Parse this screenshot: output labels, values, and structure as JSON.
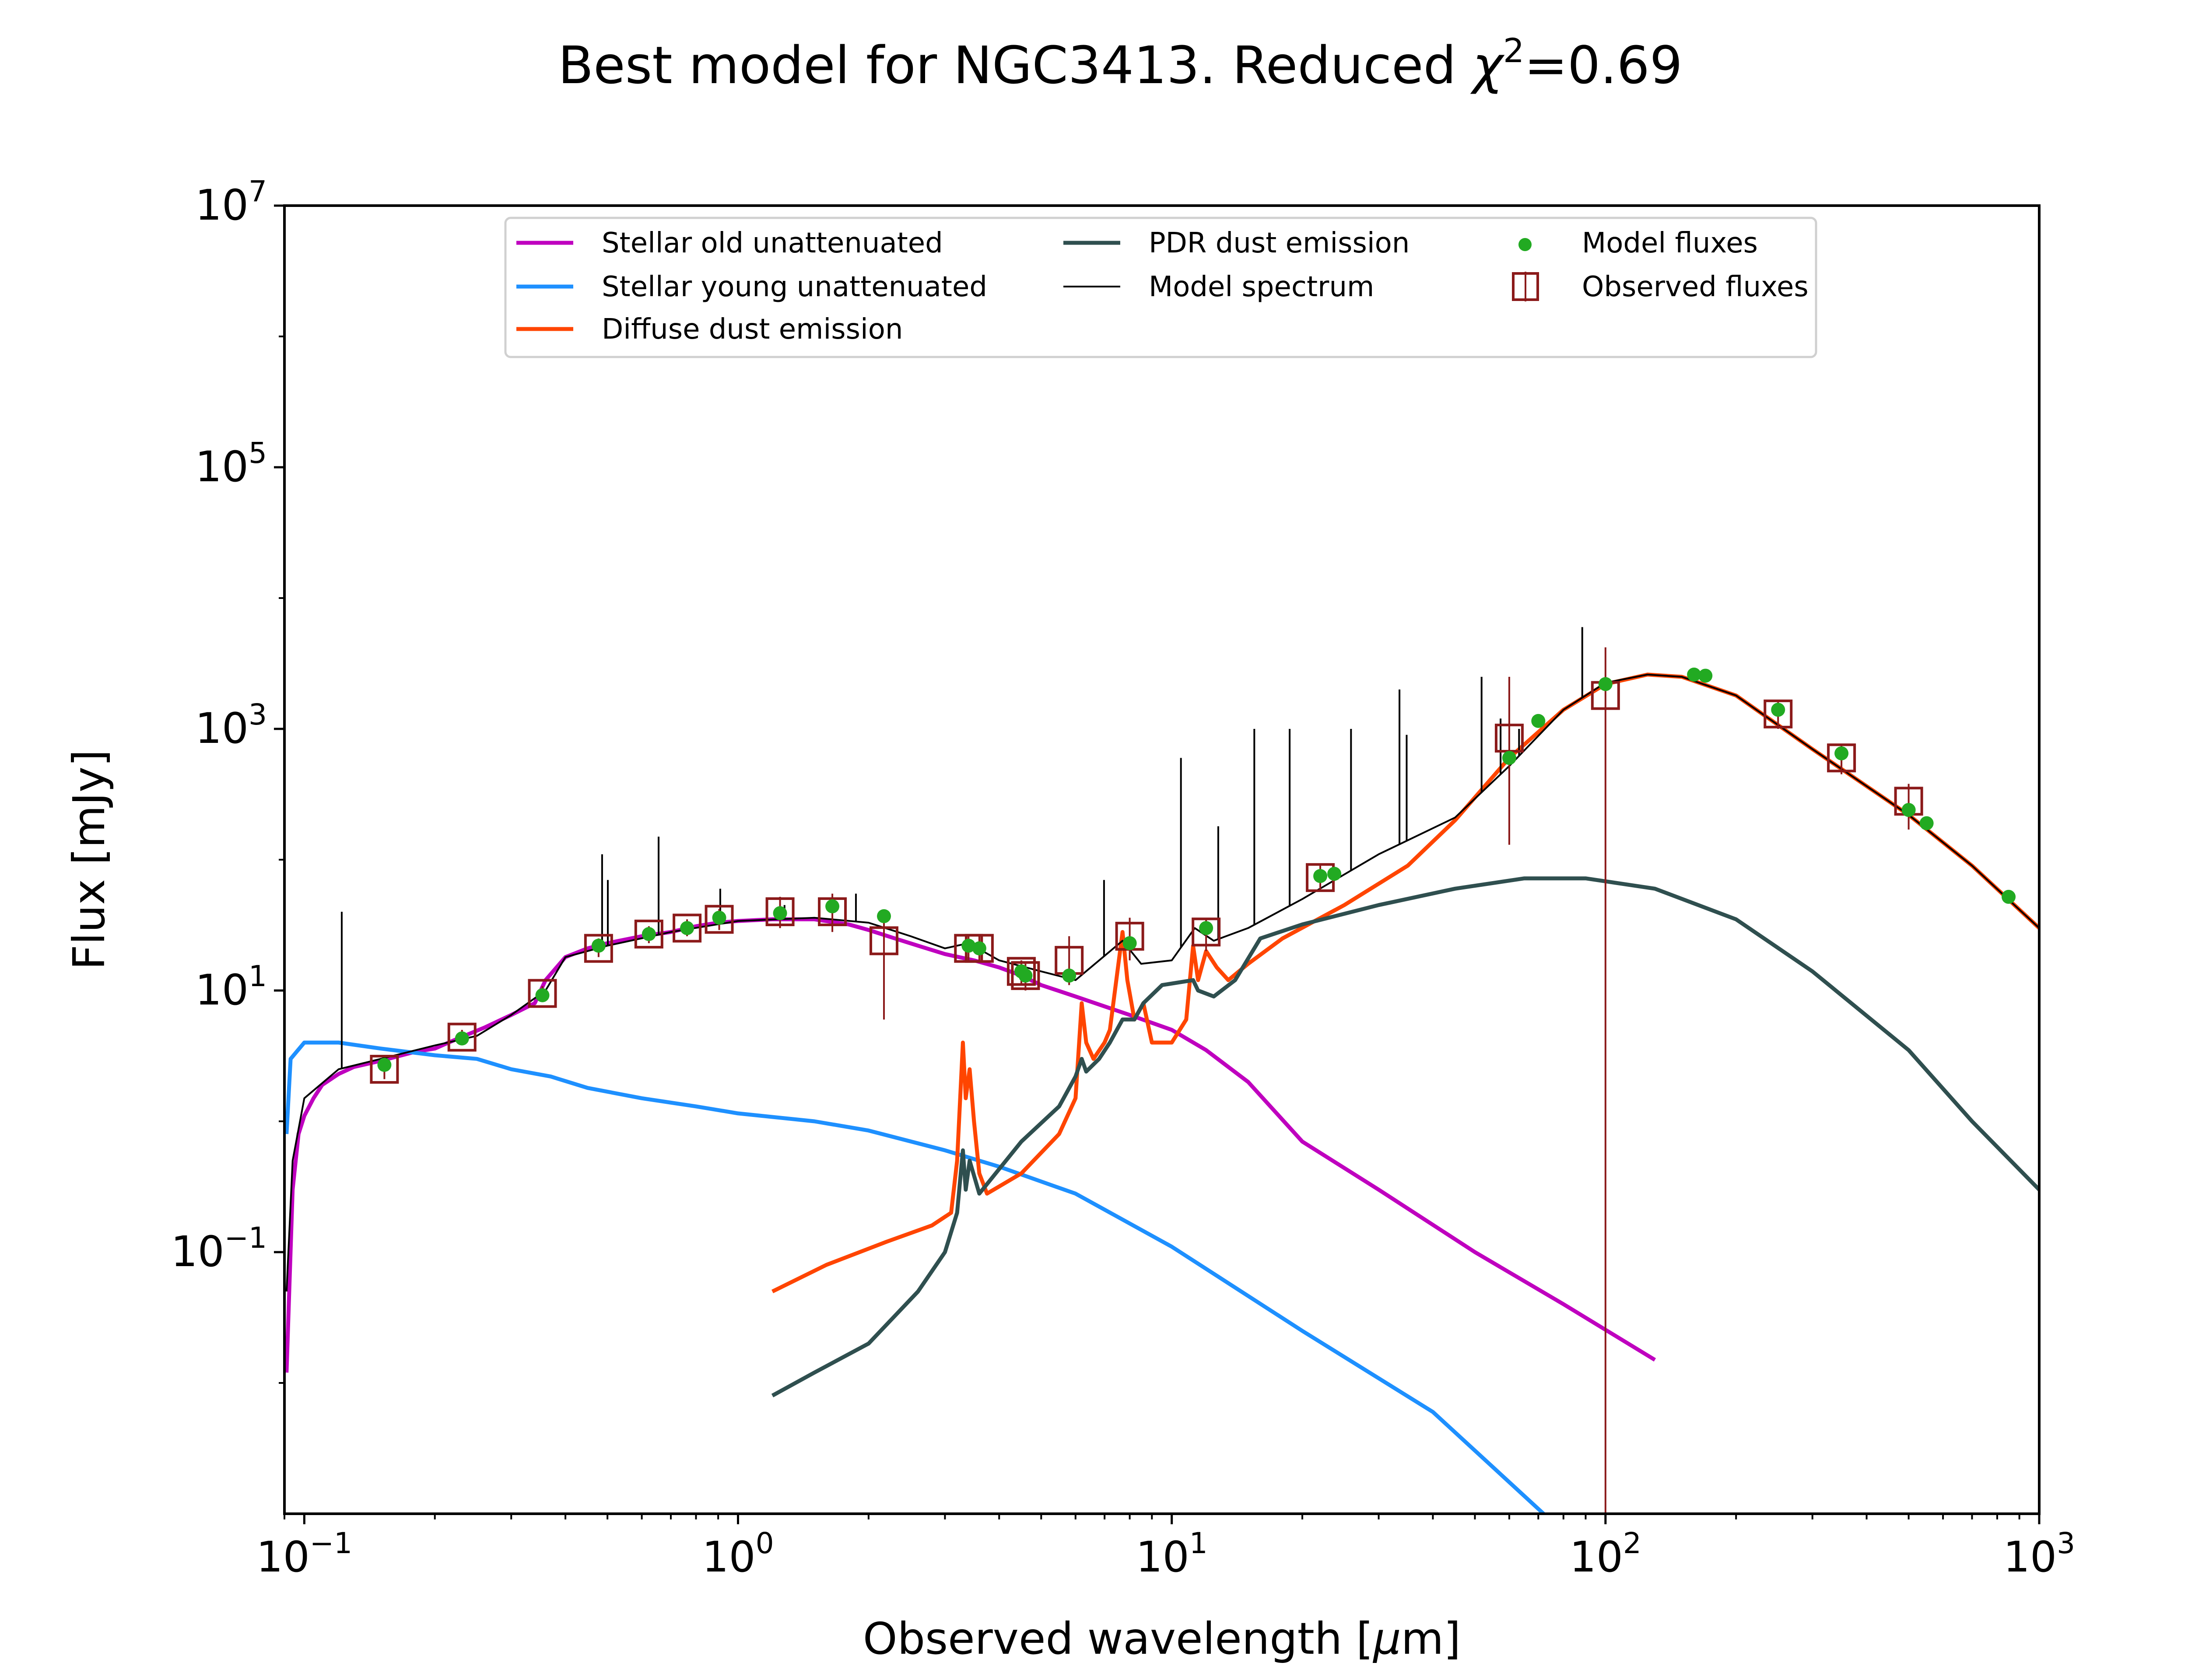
{
  "chart_data": {
    "type": "line",
    "title": {
      "prefix": "Best model for NGC3413. Reduced ",
      "chi_symbol": "χ",
      "chi_exponent": "2",
      "suffix": "=0.69"
    },
    "xlabel": {
      "prefix": "Observed wavelength [",
      "mu": "μ",
      "suffix": "m]"
    },
    "ylabel": "Flux [mJy]",
    "x_scale": "log",
    "y_scale": "log",
    "xlim": [
      0.09,
      1000
    ],
    "ylim": [
      0.001,
      10000000
    ],
    "x_ticks": [
      {
        "base": "10",
        "exp": "−1",
        "value": 0.1
      },
      {
        "base": "10",
        "exp": "0",
        "value": 1
      },
      {
        "base": "10",
        "exp": "1",
        "value": 10
      },
      {
        "base": "10",
        "exp": "2",
        "value": 100
      },
      {
        "base": "10",
        "exp": "3",
        "value": 1000
      }
    ],
    "y_ticks": [
      {
        "base": "10",
        "exp": "−1",
        "value": 0.1
      },
      {
        "base": "10",
        "exp": "1",
        "value": 10
      },
      {
        "base": "10",
        "exp": "3",
        "value": 1000
      },
      {
        "base": "10",
        "exp": "5",
        "value": 100000
      },
      {
        "base": "10",
        "exp": "7",
        "value": 10000000
      }
    ],
    "grid": false,
    "legend_position": "top-center",
    "series": [
      {
        "name": "Stellar old unattenuated",
        "color": "#bf00bf",
        "points": [
          [
            0.091,
            0.012
          ],
          [
            0.094,
            0.3
          ],
          [
            0.097,
            0.8
          ],
          [
            0.1,
            1.1
          ],
          [
            0.105,
            1.5
          ],
          [
            0.11,
            1.9
          ],
          [
            0.12,
            2.3
          ],
          [
            0.13,
            2.6
          ],
          [
            0.15,
            2.9
          ],
          [
            0.18,
            3.4
          ],
          [
            0.2,
            3.6
          ],
          [
            0.23,
            4.4
          ],
          [
            0.26,
            5.2
          ],
          [
            0.3,
            6.5
          ],
          [
            0.34,
            8
          ],
          [
            0.36,
            12
          ],
          [
            0.4,
            18
          ],
          [
            0.45,
            21
          ],
          [
            0.5,
            23
          ],
          [
            0.6,
            26
          ],
          [
            0.7,
            28
          ],
          [
            0.8,
            31
          ],
          [
            0.9,
            33
          ],
          [
            1.0,
            34
          ],
          [
            1.2,
            35
          ],
          [
            1.5,
            35
          ],
          [
            1.8,
            32
          ],
          [
            2.0,
            29
          ],
          [
            2.3,
            25
          ],
          [
            2.6,
            22
          ],
          [
            3.0,
            19
          ],
          [
            3.5,
            17
          ],
          [
            4.0,
            15
          ],
          [
            4.5,
            13
          ],
          [
            5.0,
            11
          ],
          [
            6.0,
            9
          ],
          [
            8.0,
            6.5
          ],
          [
            10.0,
            5
          ],
          [
            12.0,
            3.5
          ],
          [
            15.0,
            2
          ],
          [
            20.0,
            0.7
          ],
          [
            30.0,
            0.3
          ],
          [
            50.0,
            0.1
          ],
          [
            80.0,
            0.04
          ],
          [
            130.0,
            0.015
          ]
        ]
      },
      {
        "name": "Stellar young unattenuated",
        "color": "#1e90ff",
        "points": [
          [
            0.091,
            0.8
          ],
          [
            0.093,
            3.0
          ],
          [
            0.1,
            4.0
          ],
          [
            0.12,
            4.0
          ],
          [
            0.15,
            3.6
          ],
          [
            0.2,
            3.2
          ],
          [
            0.25,
            3.0
          ],
          [
            0.3,
            2.5
          ],
          [
            0.37,
            2.2
          ],
          [
            0.45,
            1.8
          ],
          [
            0.6,
            1.5
          ],
          [
            0.8,
            1.3
          ],
          [
            1.0,
            1.15
          ],
          [
            1.5,
            1.0
          ],
          [
            2.0,
            0.85
          ],
          [
            3.0,
            0.6
          ],
          [
            4.0,
            0.45
          ],
          [
            6.0,
            0.28
          ],
          [
            10.0,
            0.11
          ],
          [
            20.0,
            0.025
          ],
          [
            40.0,
            0.006
          ],
          [
            72.0,
            0.001
          ]
        ]
      },
      {
        "name": "Diffuse dust emission",
        "color": "#ff4500",
        "points": [
          [
            1.2,
            0.05
          ],
          [
            1.6,
            0.08
          ],
          [
            2.2,
            0.12
          ],
          [
            2.8,
            0.16
          ],
          [
            3.1,
            0.2
          ],
          [
            3.2,
            0.5
          ],
          [
            3.3,
            4
          ],
          [
            3.35,
            1.5
          ],
          [
            3.42,
            2.5
          ],
          [
            3.5,
            1
          ],
          [
            3.6,
            0.4
          ],
          [
            3.75,
            0.28
          ],
          [
            4.5,
            0.4
          ],
          [
            5.5,
            0.8
          ],
          [
            6.0,
            1.5
          ],
          [
            6.2,
            8
          ],
          [
            6.35,
            4
          ],
          [
            6.6,
            3
          ],
          [
            7.0,
            4
          ],
          [
            7.2,
            5
          ],
          [
            7.7,
            28
          ],
          [
            7.9,
            12
          ],
          [
            8.2,
            6
          ],
          [
            8.6,
            8
          ],
          [
            9.0,
            4
          ],
          [
            10.0,
            4
          ],
          [
            10.8,
            6
          ],
          [
            11.2,
            22
          ],
          [
            11.5,
            12
          ],
          [
            12.0,
            20
          ],
          [
            12.7,
            15
          ],
          [
            13.5,
            12
          ],
          [
            15.0,
            16
          ],
          [
            18.0,
            25
          ],
          [
            25.0,
            45
          ],
          [
            35.0,
            90
          ],
          [
            45.0,
            200
          ],
          [
            60.0,
            600
          ],
          [
            80.0,
            1400
          ],
          [
            100.0,
            2200
          ],
          [
            125.0,
            2600
          ],
          [
            150.0,
            2500
          ],
          [
            200.0,
            1800
          ],
          [
            300.0,
            700
          ],
          [
            500.0,
            220
          ],
          [
            700.0,
            90
          ],
          [
            1000.0,
            30
          ]
        ]
      },
      {
        "name": "PDR dust emission",
        "color": "#2f4f4f",
        "points": [
          [
            1.2,
            0.008
          ],
          [
            1.5,
            0.012
          ],
          [
            2.0,
            0.02
          ],
          [
            2.6,
            0.05
          ],
          [
            3.0,
            0.1
          ],
          [
            3.2,
            0.2
          ],
          [
            3.3,
            0.6
          ],
          [
            3.35,
            0.3
          ],
          [
            3.42,
            0.5
          ],
          [
            3.6,
            0.28
          ],
          [
            4.5,
            0.7
          ],
          [
            5.5,
            1.3
          ],
          [
            6.0,
            2.2
          ],
          [
            6.2,
            3
          ],
          [
            6.35,
            2.4
          ],
          [
            6.8,
            3
          ],
          [
            7.2,
            4
          ],
          [
            7.7,
            6
          ],
          [
            8.2,
            6
          ],
          [
            8.6,
            8
          ],
          [
            9.5,
            11
          ],
          [
            11.2,
            12
          ],
          [
            11.5,
            10
          ],
          [
            12.5,
            9
          ],
          [
            14.0,
            12
          ],
          [
            16.0,
            25
          ],
          [
            20.0,
            32
          ],
          [
            30.0,
            45
          ],
          [
            45.0,
            60
          ],
          [
            65.0,
            72
          ],
          [
            90.0,
            72
          ],
          [
            130.0,
            60
          ],
          [
            200.0,
            35
          ],
          [
            300.0,
            14
          ],
          [
            500.0,
            3.5
          ],
          [
            700.0,
            1
          ],
          [
            1000.0,
            0.3
          ]
        ]
      },
      {
        "name": "Model spectrum",
        "color": "#000000",
        "points": [
          [
            0.091,
            0.05
          ],
          [
            0.094,
            0.5
          ],
          [
            0.1,
            1.5
          ],
          [
            0.12,
            2.5
          ],
          [
            0.15,
            3.0
          ],
          [
            0.2,
            3.8
          ],
          [
            0.25,
            4.5
          ],
          [
            0.3,
            6.5
          ],
          [
            0.36,
            10
          ],
          [
            0.4,
            18
          ],
          [
            0.5,
            22
          ],
          [
            0.7,
            28
          ],
          [
            1.0,
            34
          ],
          [
            1.5,
            36
          ],
          [
            2.0,
            33
          ],
          [
            2.5,
            26
          ],
          [
            3.0,
            21
          ],
          [
            3.4,
            23
          ],
          [
            4.0,
            17
          ],
          [
            5.0,
            14
          ],
          [
            6.0,
            12
          ],
          [
            7.7,
            24
          ],
          [
            8.5,
            16
          ],
          [
            10.0,
            17
          ],
          [
            11.3,
            30
          ],
          [
            12.5,
            24
          ],
          [
            15.0,
            30
          ],
          [
            20.0,
            50
          ],
          [
            30.0,
            110
          ],
          [
            45.0,
            210
          ],
          [
            60.0,
            520
          ],
          [
            80.0,
            1400
          ],
          [
            100.0,
            2250
          ],
          [
            125.0,
            2600
          ],
          [
            150.0,
            2500
          ],
          [
            200.0,
            1800
          ],
          [
            300.0,
            700
          ],
          [
            500.0,
            220
          ],
          [
            700.0,
            90
          ],
          [
            1000.0,
            30
          ]
        ],
        "lines": [
          [
            0.122,
            40
          ],
          [
            0.486,
            110
          ],
          [
            0.501,
            70
          ],
          [
            0.656,
            150
          ],
          [
            0.91,
            60
          ],
          [
            1.28,
            45
          ],
          [
            1.87,
            55
          ],
          [
            6.98,
            70
          ],
          [
            10.5,
            600
          ],
          [
            12.8,
            180
          ],
          [
            15.5,
            1000
          ],
          [
            18.7,
            1000
          ],
          [
            25.9,
            1000
          ],
          [
            33.5,
            2000
          ],
          [
            34.8,
            900
          ],
          [
            51.8,
            2500
          ],
          [
            57.3,
            1200
          ],
          [
            63.2,
            1000
          ],
          [
            88.4,
            6000
          ]
        ]
      }
    ],
    "model_fluxes": {
      "name": "Model fluxes",
      "color": "#22aa22",
      "points": [
        [
          0.153,
          2.7
        ],
        [
          0.231,
          4.3
        ],
        [
          0.354,
          9.2
        ],
        [
          0.477,
          22
        ],
        [
          0.623,
          27
        ],
        [
          0.763,
          30
        ],
        [
          0.905,
          36
        ],
        [
          1.25,
          39
        ],
        [
          1.65,
          44
        ],
        [
          2.17,
          37
        ],
        [
          3.4,
          22
        ],
        [
          3.6,
          21
        ],
        [
          4.5,
          14
        ],
        [
          4.6,
          13
        ],
        [
          5.8,
          13
        ],
        [
          8.0,
          23
        ],
        [
          12.0,
          30
        ],
        [
          22.0,
          75
        ],
        [
          23.7,
          78
        ],
        [
          60.0,
          600
        ],
        [
          70.0,
          1150
        ],
        [
          100.0,
          2200
        ],
        [
          160.0,
          2600
        ],
        [
          170.0,
          2550
        ],
        [
          250.0,
          1400
        ],
        [
          350.0,
          650
        ],
        [
          500.0,
          240
        ],
        [
          550.0,
          190
        ],
        [
          850.0,
          52
        ]
      ]
    },
    "observed_fluxes": {
      "name": "Observed fluxes",
      "color": "#8b1a1a",
      "points": [
        {
          "x": 0.153,
          "y": 2.5,
          "lo": 2.1,
          "hi": 3.0
        },
        {
          "x": 0.231,
          "y": 4.4,
          "lo": 3.9,
          "hi": 5.0
        },
        {
          "x": 0.354,
          "y": 9.5,
          "lo": 8.5,
          "hi": 10.8
        },
        {
          "x": 0.477,
          "y": 21,
          "lo": 18,
          "hi": 25
        },
        {
          "x": 0.623,
          "y": 27,
          "lo": 23,
          "hi": 31
        },
        {
          "x": 0.763,
          "y": 30,
          "lo": 26,
          "hi": 35
        },
        {
          "x": 0.905,
          "y": 35,
          "lo": 29,
          "hi": 42
        },
        {
          "x": 1.25,
          "y": 40,
          "lo": 30,
          "hi": 52
        },
        {
          "x": 1.65,
          "y": 40,
          "lo": 28,
          "hi": 55
        },
        {
          "x": 2.17,
          "y": 24,
          "lo": 6,
          "hi": 40
        },
        {
          "x": 3.4,
          "y": 21,
          "lo": 17,
          "hi": 26
        },
        {
          "x": 3.6,
          "y": 21,
          "lo": 17,
          "hi": 26
        },
        {
          "x": 4.5,
          "y": 14,
          "lo": 11,
          "hi": 17
        },
        {
          "x": 4.6,
          "y": 13,
          "lo": 10,
          "hi": 16
        },
        {
          "x": 5.8,
          "y": 17,
          "lo": 11,
          "hi": 26
        },
        {
          "x": 8.0,
          "y": 26,
          "lo": 17,
          "hi": 36
        },
        {
          "x": 12.0,
          "y": 28,
          "lo": 20,
          "hi": 36
        },
        {
          "x": 22.0,
          "y": 73,
          "lo": 58,
          "hi": 90
        },
        {
          "x": 60.0,
          "y": 850,
          "lo": 130,
          "hi": 2500
        },
        {
          "x": 100.0,
          "y": 1800,
          "lo": 0.001,
          "hi": 4200
        },
        {
          "x": 250.0,
          "y": 1300,
          "lo": 1000,
          "hi": 1600
        },
        {
          "x": 350.0,
          "y": 600,
          "lo": 450,
          "hi": 760
        },
        {
          "x": 500.0,
          "y": 280,
          "lo": 170,
          "hi": 380
        }
      ]
    }
  }
}
